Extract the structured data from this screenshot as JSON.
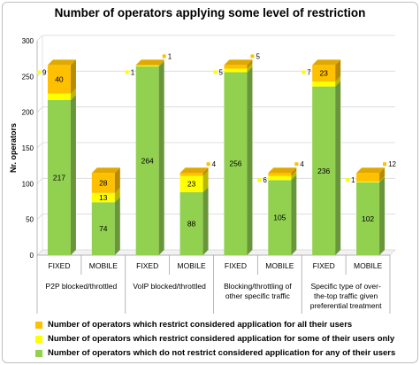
{
  "chart_data": {
    "type": "bar",
    "stacked": true,
    "three_d": true,
    "title": "Number of operators applying some level of restriction",
    "ylabel": "Nr. operators",
    "ylim": [
      0,
      300
    ],
    "yticks": [
      0,
      50,
      100,
      150,
      200,
      250,
      300
    ],
    "grid": true,
    "legend_position": "bottom",
    "groups": [
      "P2P blocked/throttled",
      "VoIP blocked/throttled",
      "Blocking/throttling of other specific traffic",
      "Specific type of over-the-top traffic given preferential treatment"
    ],
    "categories": [
      "FIXED",
      "MOBILE",
      "FIXED",
      "MOBILE",
      "FIXED",
      "MOBILE",
      "FIXED",
      "MOBILE"
    ],
    "series": [
      {
        "name": "Number of operators which do not restrict considered application for any of their users",
        "color": "#92d050",
        "values": [
          217,
          74,
          264,
          88,
          256,
          105,
          236,
          102
        ]
      },
      {
        "name": "Number of operators which restrict considered application for some of their users only",
        "color": "#ffff00",
        "values": [
          9,
          13,
          1,
          23,
          5,
          6,
          7,
          1
        ]
      },
      {
        "name": "Number of operators which restrict considered application for all their users",
        "color": "#ffc000",
        "values": [
          40,
          28,
          1,
          4,
          5,
          4,
          23,
          12
        ]
      }
    ]
  }
}
